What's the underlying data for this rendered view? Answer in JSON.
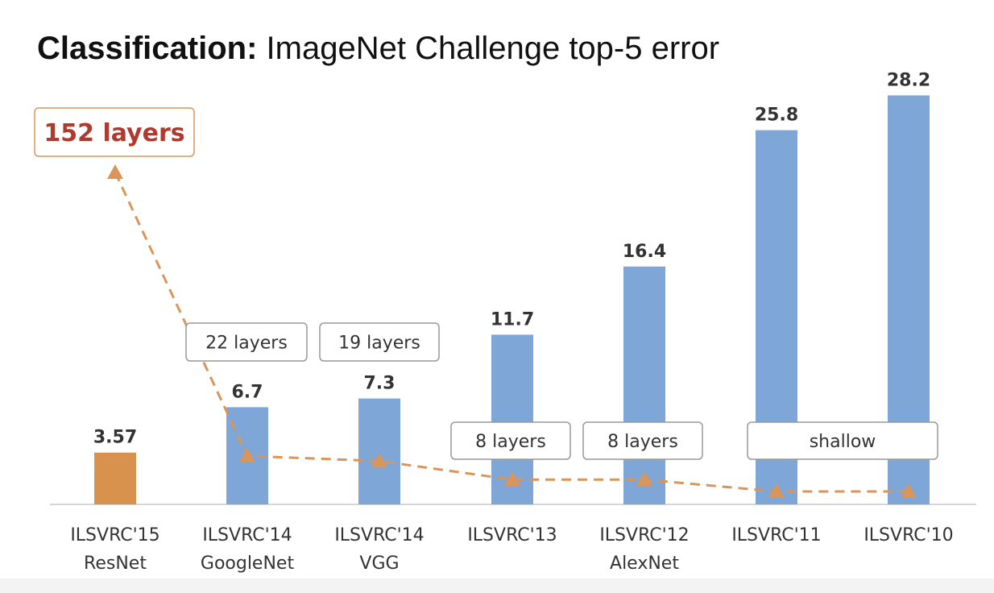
{
  "title": {
    "bold": "Classification:",
    "rest": "ImageNet Challenge top-5 error"
  },
  "chart_data": {
    "type": "bar",
    "title": "Classification: ImageNet Challenge top-5 error",
    "xlabel": "",
    "ylabel": "",
    "ylim": [
      0,
      30
    ],
    "grid": false,
    "categories": [
      [
        "ILSVRC'15",
        "ResNet"
      ],
      [
        "ILSVRC'14",
        "GoogleNet"
      ],
      [
        "ILSVRC'14",
        "VGG"
      ],
      [
        "ILSVRC'13",
        ""
      ],
      [
        "ILSVRC'12",
        "AlexNet"
      ],
      [
        "ILSVRC'11",
        ""
      ],
      [
        "ILSVRC'10",
        ""
      ]
    ],
    "values": [
      3.57,
      6.7,
      7.3,
      11.7,
      16.4,
      25.8,
      28.2
    ],
    "value_labels": [
      "3.57",
      "6.7",
      "7.3",
      "11.7",
      "16.4",
      "25.8",
      "28.2"
    ],
    "layer_labels": [
      "152 layers",
      "22 layers",
      "19 layers",
      "8 layers",
      "8 layers",
      "shallow",
      ""
    ],
    "layer_line_values": [
      152,
      22,
      19,
      8,
      8,
      1,
      1
    ],
    "colors": {
      "bar": "#7ea6d6",
      "highlight_bar": "#d9914e",
      "layer_line": "#d9955a",
      "highlight_text": "#b03a2e",
      "text": "#333333",
      "box_border": "#999999"
    }
  }
}
